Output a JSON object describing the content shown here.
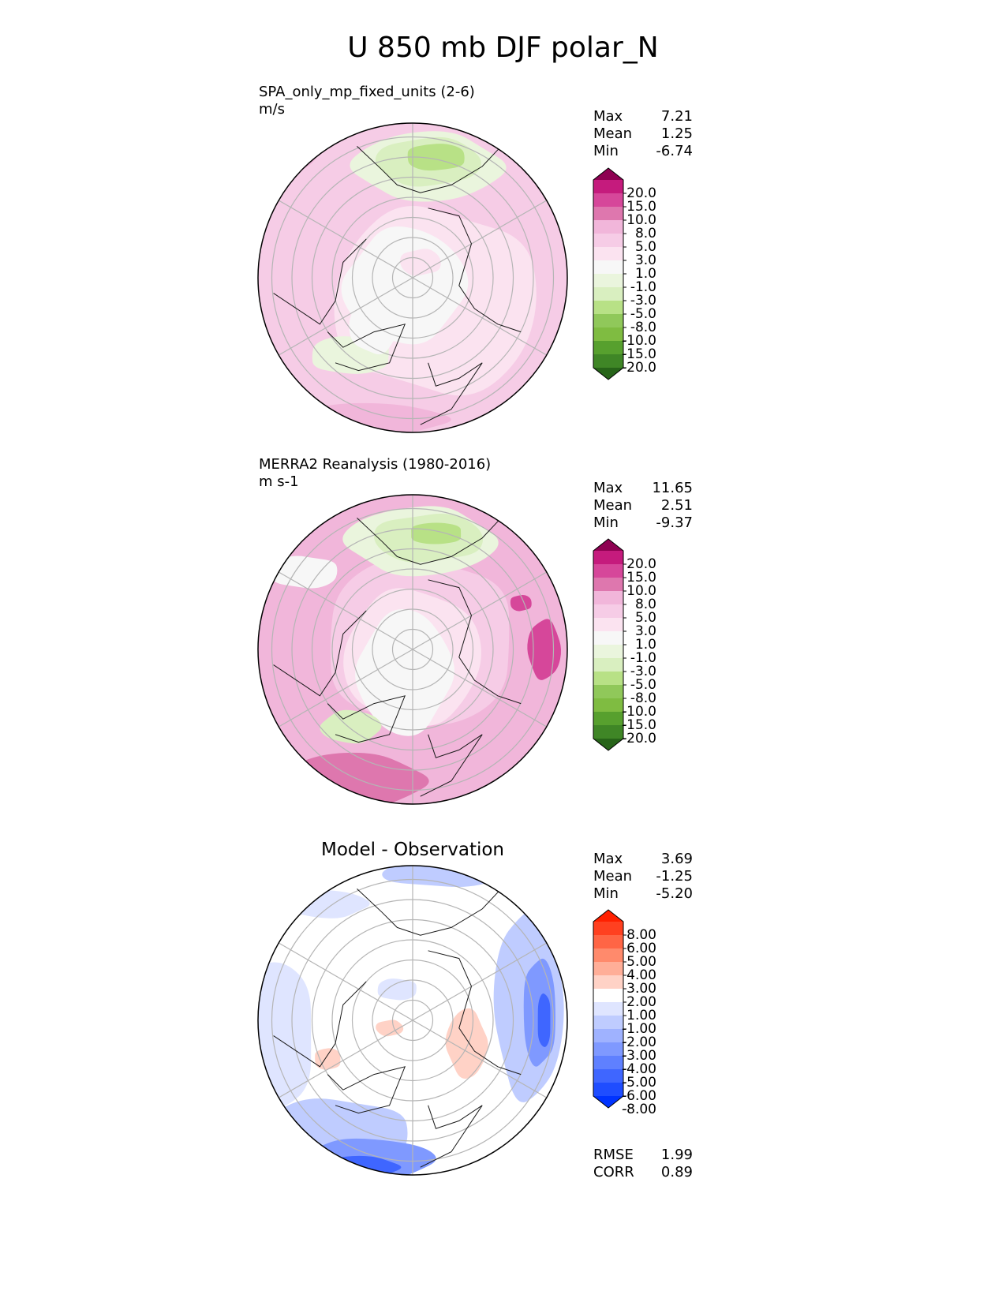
{
  "title": "U 850 mb DJF polar_N",
  "colors": {
    "pink": [
      "#8e0152",
      "#c51b7d",
      "#d6479a",
      "#de77ae",
      "#f1b6da",
      "#f6cce6",
      "#fbe3f0",
      "#f7f7f7",
      "#eaf5dd",
      "#d9efc0",
      "#b8e186",
      "#90c85a",
      "#7fbc41",
      "#57a02e",
      "#3f8626",
      "#276419"
    ],
    "diff": [
      "#ff2000",
      "#ff4020",
      "#ff6545",
      "#ff8a6c",
      "#ffae98",
      "#ffd2c6",
      "#ffffff",
      "#dfe5ff",
      "#bfccff",
      "#9fb2ff",
      "#7f99ff",
      "#5f80ff",
      "#3f66ff",
      "#1f4dff",
      "#0033ff"
    ]
  },
  "chart_data": [
    {
      "type": "heatmap",
      "projection": "north polar stereographic",
      "title": "SPA_only_mp_fixed_units (2-6)",
      "units": "m/s",
      "stats": {
        "max": "7.21",
        "mean": "1.25",
        "min": "-6.74"
      },
      "stat_labels": {
        "max": "Max",
        "mean": "Mean",
        "min": "Min"
      },
      "colorbar_levels": [
        "20.0",
        "15.0",
        "10.0",
        "8.0",
        "5.0",
        "3.0",
        "1.0",
        "-1.0",
        "-3.0",
        "-5.0",
        "-8.0",
        "-10.0",
        "-15.0",
        "-20.0"
      ]
    },
    {
      "type": "heatmap",
      "projection": "north polar stereographic",
      "title": "MERRA2 Reanalysis (1980-2016)",
      "units": "m s-1",
      "stats": {
        "max": "11.65",
        "mean": "2.51",
        "min": "-9.37"
      },
      "stat_labels": {
        "max": "Max",
        "mean": "Mean",
        "min": "Min"
      },
      "colorbar_levels": [
        "20.0",
        "15.0",
        "10.0",
        "8.0",
        "5.0",
        "3.0",
        "1.0",
        "-1.0",
        "-3.0",
        "-5.0",
        "-8.0",
        "-10.0",
        "-15.0",
        "-20.0"
      ]
    },
    {
      "type": "heatmap",
      "projection": "north polar stereographic",
      "title": "Model - Observation",
      "stats": {
        "max": "3.69",
        "mean": "-1.25",
        "min": "-5.20"
      },
      "stat_labels": {
        "max": "Max",
        "mean": "Mean",
        "min": "Min"
      },
      "colorbar_levels": [
        "8.00",
        "6.00",
        "5.00",
        "4.00",
        "3.00",
        "2.00",
        "1.00",
        "-1.00",
        "-2.00",
        "-3.00",
        "-4.00",
        "-5.00",
        "-6.00",
        "-8.00"
      ],
      "metrics": {
        "rmse": "1.99",
        "corr": "0.89"
      },
      "metric_labels": {
        "rmse": "RMSE",
        "corr": "CORR"
      }
    }
  ]
}
